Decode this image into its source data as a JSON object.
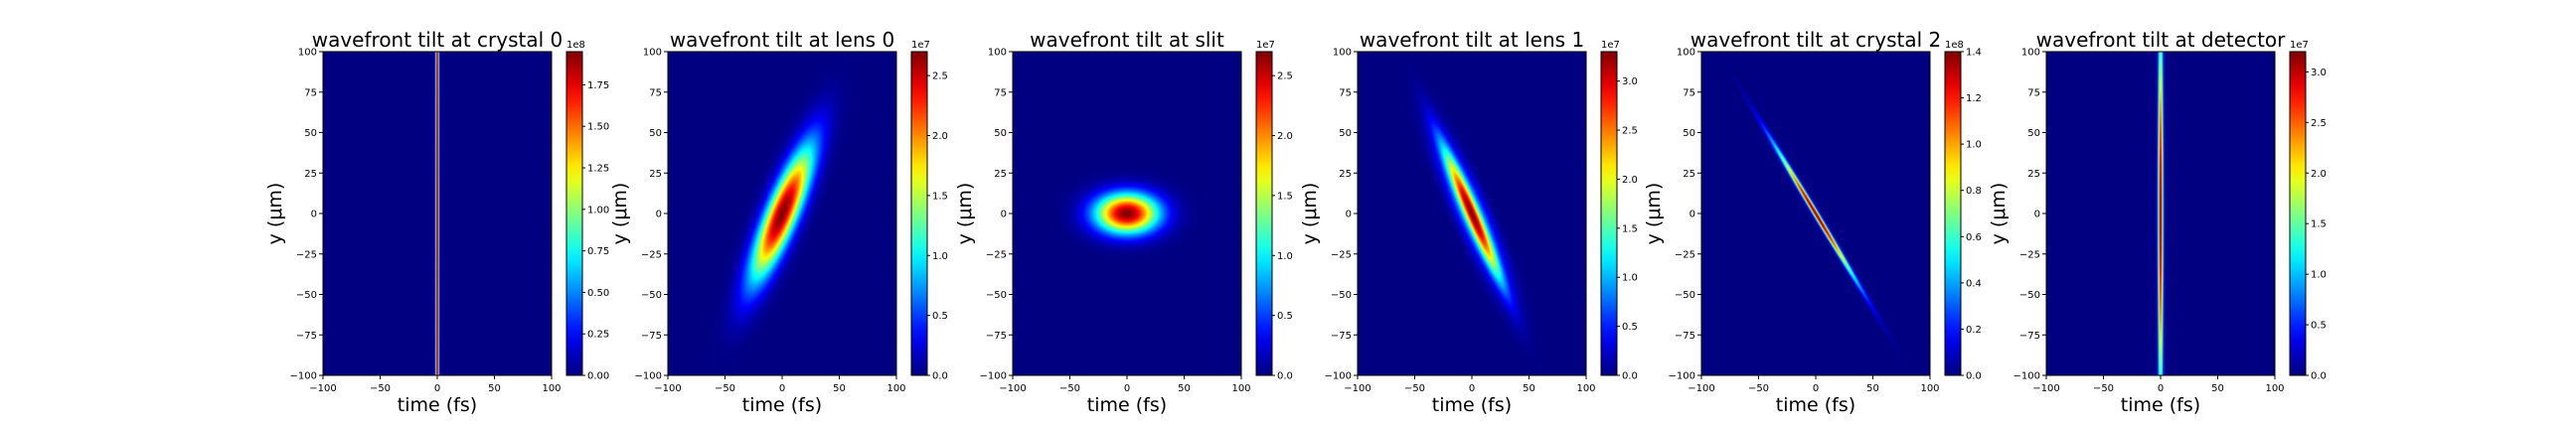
{
  "chart_data": [
    {
      "type": "heatmap",
      "title": "wavefront tilt at crystal 0",
      "xlabel": "time (fs)",
      "ylabel": "y (μm)",
      "xlim": [
        -100,
        100
      ],
      "ylim": [
        -100,
        100
      ],
      "xticks": [
        "−100",
        "−50",
        "0",
        "50",
        "100"
      ],
      "yticks": [
        "100",
        "75",
        "50",
        "25",
        "0",
        "−25",
        "−50",
        "−75",
        "−100"
      ],
      "colormap": "jet",
      "colorbar": {
        "vmax": 1.95,
        "ticks": [
          0,
          0.25,
          0.5,
          0.75,
          1.0,
          1.25,
          1.5,
          1.75
        ],
        "labels": [
          "0.00",
          "0.25",
          "0.50",
          "0.75",
          "1.00",
          "1.25",
          "1.50",
          "1.75"
        ],
        "offset": "1e8"
      },
      "beam": {
        "center_t": 0,
        "center_y": 0,
        "duration_fs": 1.5,
        "width_um": 400,
        "tilt_fs_per_um": 0
      }
    },
    {
      "type": "heatmap",
      "title": "wavefront tilt at lens 0",
      "xlabel": "time (fs)",
      "ylabel": "y (μm)",
      "xlim": [
        -100,
        100
      ],
      "ylim": [
        -100,
        100
      ],
      "xticks": [
        "−100",
        "−50",
        "0",
        "50",
        "100"
      ],
      "yticks": [
        "100",
        "75",
        "50",
        "25",
        "0",
        "−25",
        "−50",
        "−75",
        "−100"
      ],
      "colormap": "jet",
      "colorbar": {
        "vmax": 2.7,
        "ticks": [
          0,
          0.5,
          1.0,
          1.5,
          2.0,
          2.5
        ],
        "labels": [
          "0.0",
          "0.5",
          "1.0",
          "1.5",
          "2.0",
          "2.5"
        ],
        "offset": "1e7"
      },
      "beam": {
        "center_t": 0,
        "center_y": 0,
        "duration_fs": 14,
        "width_um": 40,
        "tilt_fs_per_um": 0.55
      }
    },
    {
      "type": "heatmap",
      "title": "wavefront tilt at slit",
      "xlabel": "time (fs)",
      "ylabel": "y (μm)",
      "xlim": [
        -100,
        100
      ],
      "ylim": [
        -100,
        100
      ],
      "xticks": [
        "−100",
        "−50",
        "0",
        "50",
        "100"
      ],
      "yticks": [
        "100",
        "75",
        "50",
        "25",
        "0",
        "−25",
        "−50",
        "−75",
        "−100"
      ],
      "colormap": "jet",
      "colorbar": {
        "vmax": 2.7,
        "ticks": [
          0,
          0.5,
          1.0,
          1.5,
          2.0,
          2.5
        ],
        "labels": [
          "0.0",
          "0.5",
          "1.0",
          "1.5",
          "2.0",
          "2.5"
        ],
        "offset": "1e7"
      },
      "beam": {
        "center_t": 0,
        "center_y": 0,
        "duration_fs": 27,
        "width_um": 12,
        "tilt_fs_per_um": 0
      }
    },
    {
      "type": "heatmap",
      "title": "wavefront tilt at lens 1",
      "xlabel": "time (fs)",
      "ylabel": "y (μm)",
      "xlim": [
        -100,
        100
      ],
      "ylim": [
        -100,
        100
      ],
      "xticks": [
        "−100",
        "−50",
        "0",
        "50",
        "100"
      ],
      "yticks": [
        "100",
        "75",
        "50",
        "25",
        "0",
        "−25",
        "−50",
        "−75",
        "−100"
      ],
      "colormap": "jet",
      "colorbar": {
        "vmax": 3.3,
        "ticks": [
          0,
          0.5,
          1.0,
          1.5,
          2.0,
          2.5,
          3.0
        ],
        "labels": [
          "0.0",
          "0.5",
          "1.0",
          "1.5",
          "2.0",
          "2.5",
          "3.0"
        ],
        "offset": "1e7"
      },
      "beam": {
        "center_t": 0,
        "center_y": 0,
        "duration_fs": 10,
        "width_um": 40,
        "tilt_fs_per_um": -0.6,
        "fringes": true
      }
    },
    {
      "type": "heatmap",
      "title": "wavefront tilt at crystal 2",
      "xlabel": "time (fs)",
      "ylabel": "y (μm)",
      "xlim": [
        -100,
        100
      ],
      "ylim": [
        -100,
        100
      ],
      "xticks": [
        "−100",
        "−50",
        "0",
        "50",
        "100"
      ],
      "yticks": [
        "100",
        "75",
        "50",
        "25",
        "0",
        "−25",
        "−50",
        "−75",
        "−100"
      ],
      "colormap": "jet",
      "colorbar": {
        "vmax": 1.4,
        "ticks": [
          0,
          0.2,
          0.4,
          0.6,
          0.8,
          1.0,
          1.2,
          1.4
        ],
        "labels": [
          "0.0",
          "0.2",
          "0.4",
          "0.6",
          "0.8",
          "1.0",
          "1.2",
          "1.4"
        ],
        "offset": "1e8"
      },
      "beam": {
        "center_t": 0,
        "center_y": 0,
        "duration_fs": 2.6,
        "width_um": 40,
        "tilt_fs_per_um": -0.85
      }
    },
    {
      "type": "heatmap",
      "title": "wavefront tilt at detector",
      "xlabel": "time (fs)",
      "ylabel": "y (μm)",
      "xlim": [
        -100,
        100
      ],
      "ylim": [
        -100,
        100
      ],
      "xticks": [
        "−100",
        "−50",
        "0",
        "50",
        "100"
      ],
      "yticks": [
        "100",
        "75",
        "50",
        "25",
        "0",
        "−25",
        "−50",
        "−75",
        "−100"
      ],
      "colormap": "jet",
      "colorbar": {
        "vmax": 3.2,
        "ticks": [
          0,
          0.5,
          1.0,
          1.5,
          2.0,
          2.5,
          3.0
        ],
        "labels": [
          "0.0",
          "0.5",
          "1.0",
          "1.5",
          "2.0",
          "2.5",
          "3.0"
        ],
        "offset": "1e7"
      },
      "beam": {
        "center_t": 0,
        "center_y": 0,
        "duration_fs": 2.2,
        "width_um": 120,
        "tilt_fs_per_um": 0,
        "edge_min": 0.35
      }
    }
  ]
}
